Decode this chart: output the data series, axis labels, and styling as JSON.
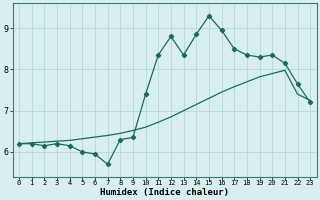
{
  "xlabel": "Humidex (Indice chaleur)",
  "background_color": "#d9eeee",
  "grid_color": "#b8d8d8",
  "line_color": "#1a6b5e",
  "xlim": [
    -0.5,
    23.5
  ],
  "ylim": [
    5.4,
    9.6
  ],
  "yticks": [
    6,
    7,
    8,
    9
  ],
  "xticks": [
    0,
    1,
    2,
    3,
    4,
    5,
    6,
    7,
    8,
    9,
    10,
    11,
    12,
    13,
    14,
    15,
    16,
    17,
    18,
    19,
    20,
    21,
    22,
    23
  ],
  "x_data": [
    0,
    1,
    2,
    3,
    4,
    5,
    6,
    7,
    8,
    9,
    10,
    11,
    12,
    13,
    14,
    15,
    16,
    17,
    18,
    19,
    20,
    21,
    22,
    23
  ],
  "y_jagged": [
    6.2,
    6.2,
    6.15,
    6.2,
    6.15,
    6.0,
    5.95,
    5.7,
    6.3,
    6.35,
    7.4,
    8.35,
    8.8,
    8.35,
    8.85,
    9.3,
    8.95,
    8.5,
    8.35,
    8.3,
    8.35,
    8.15,
    7.65,
    7.2
  ],
  "y_smooth": [
    6.2,
    6.22,
    6.24,
    6.26,
    6.28,
    6.32,
    6.36,
    6.4,
    6.45,
    6.52,
    6.6,
    6.72,
    6.85,
    7.0,
    7.15,
    7.3,
    7.45,
    7.58,
    7.7,
    7.82,
    7.9,
    7.98,
    7.4,
    7.25
  ]
}
